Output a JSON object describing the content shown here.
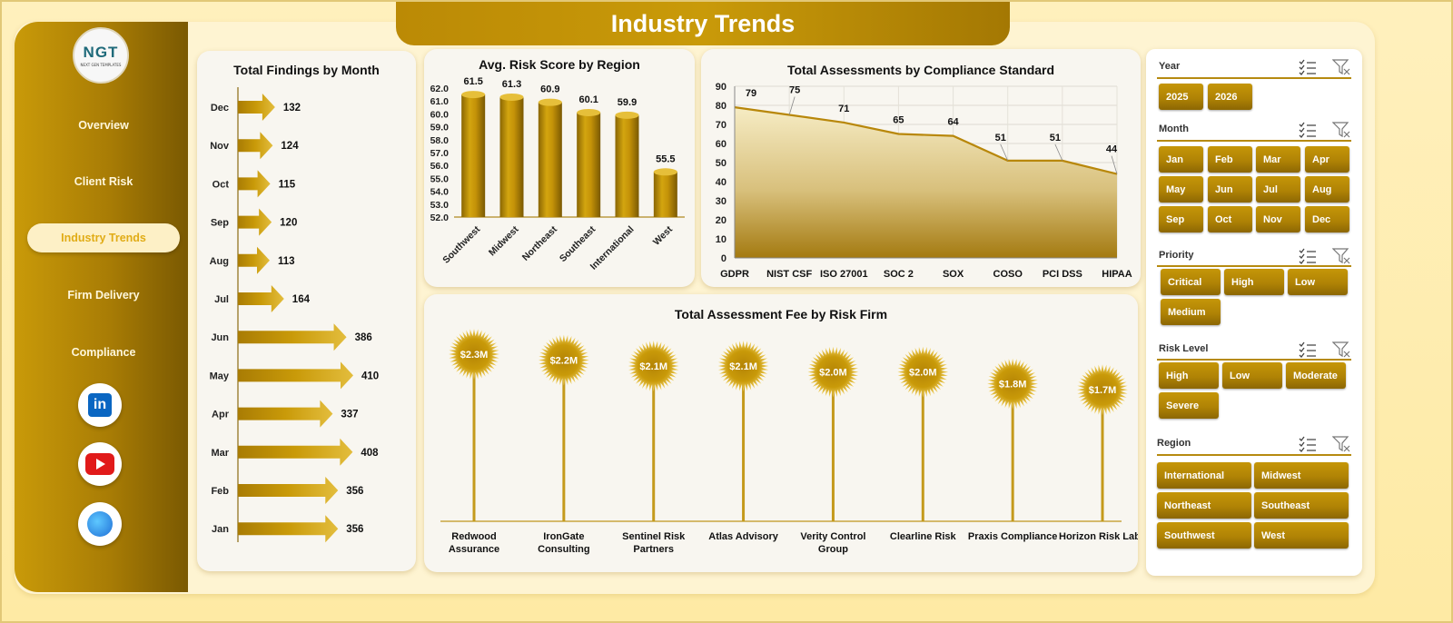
{
  "page_title": "Industry Trends",
  "logo": {
    "text": "NGT",
    "subtext": "NEXT GEN TEMPLATES"
  },
  "nav": [
    {
      "label": "Overview",
      "active": false
    },
    {
      "label": "Client Risk",
      "active": false
    },
    {
      "label": "Industry Trends",
      "active": true
    },
    {
      "label": "Firm Delivery",
      "active": false
    },
    {
      "label": "Compliance",
      "active": false
    }
  ],
  "social": [
    {
      "icon": "linkedin-icon",
      "glyph": "in"
    },
    {
      "icon": "youtube-icon"
    },
    {
      "icon": "globe-icon"
    }
  ],
  "colors": {
    "gold": "#c99a09",
    "gold_dark": "#7a5902",
    "accent_light": "#fdf0c6"
  },
  "filters": {
    "year": {
      "title": "Year",
      "options": [
        "2025",
        "2026"
      ]
    },
    "month": {
      "title": "Month",
      "options": [
        "Jan",
        "Feb",
        "Mar",
        "Apr",
        "May",
        "Jun",
        "Jul",
        "Aug",
        "Sep",
        "Oct",
        "Nov",
        "Dec"
      ]
    },
    "priority": {
      "title": "Priority",
      "options": [
        "Critical",
        "High",
        "Low",
        "Medium"
      ]
    },
    "risk_level": {
      "title": "Risk Level",
      "options": [
        "High",
        "Low",
        "Moderate",
        "Severe"
      ]
    },
    "region": {
      "title": "Region",
      "options": [
        "International",
        "Midwest",
        "Northeast",
        "Southeast",
        "Southwest",
        "West"
      ]
    }
  },
  "chart_data": [
    {
      "id": "findings",
      "type": "bar",
      "orientation": "horizontal",
      "title": "Total Findings by Month",
      "categories": [
        "Dec",
        "Nov",
        "Oct",
        "Sep",
        "Aug",
        "Jul",
        "Jun",
        "May",
        "Apr",
        "Mar",
        "Feb",
        "Jan"
      ],
      "values": [
        132,
        124,
        115,
        120,
        113,
        164,
        386,
        410,
        337,
        408,
        356,
        356
      ]
    },
    {
      "id": "risk",
      "type": "bar",
      "title": "Avg. Risk Score by Region",
      "categories": [
        "Southwest",
        "Midwest",
        "Northeast",
        "Southeast",
        "International",
        "West"
      ],
      "values": [
        61.5,
        61.3,
        60.9,
        60.1,
        59.9,
        55.5
      ],
      "ylim": [
        52.0,
        62.0
      ],
      "yticks": [
        "62.0",
        "61.0",
        "60.0",
        "59.0",
        "58.0",
        "57.0",
        "56.0",
        "55.0",
        "54.0",
        "53.0",
        "52.0"
      ]
    },
    {
      "id": "assessments",
      "type": "area",
      "title": "Total Assessments  by Compliance Standard",
      "categories": [
        "GDPR",
        "NIST CSF",
        "ISO 27001",
        "SOC 2",
        "SOX",
        "COSO",
        "PCI DSS",
        "HIPAA"
      ],
      "values": [
        79,
        75,
        71,
        65,
        64,
        51,
        51,
        44
      ],
      "ylim": [
        0,
        90
      ],
      "yticks": [
        0,
        10,
        20,
        30,
        40,
        50,
        60,
        70,
        80,
        90
      ],
      "grid": true
    },
    {
      "id": "fees",
      "type": "bar",
      "title": "Total Assessment  Fee by Risk Firm",
      "categories": [
        "Redwood Assurance",
        "IronGate Consulting",
        "Sentinel Risk Partners",
        "Atlas Advisory",
        "Verity Control Group",
        "Clearline Risk",
        "Praxis Compliance",
        "Horizon Risk Labs"
      ],
      "values": [
        2.3,
        2.2,
        2.1,
        2.1,
        2.0,
        2.0,
        1.8,
        1.7
      ],
      "labels": [
        "$2.3M",
        "$2.2M",
        "$2.1M",
        "$2.1M",
        "$2.0M",
        "$2.0M",
        "$1.8M",
        "$1.7M"
      ],
      "ylim": [
        0,
        2.3
      ]
    }
  ]
}
